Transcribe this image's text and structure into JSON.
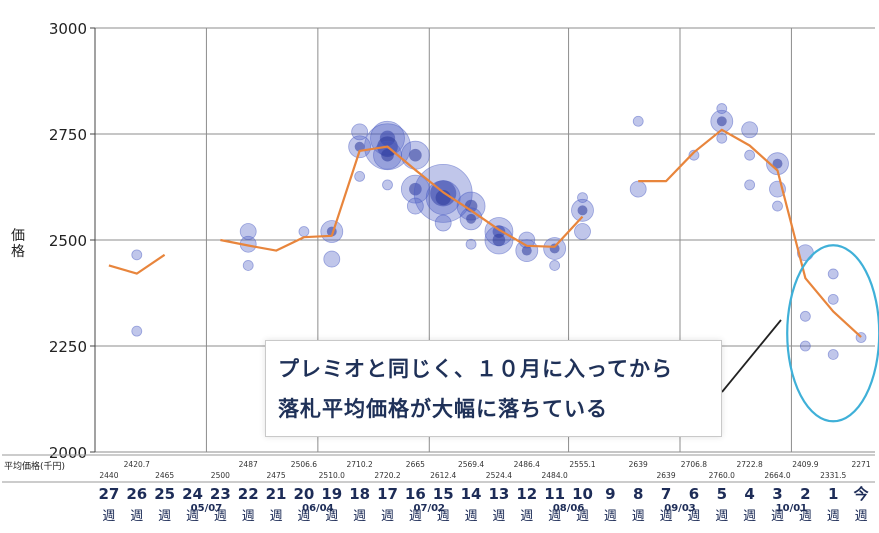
{
  "chart_data": {
    "type": "line",
    "ylabel": "価格",
    "ylim": [
      2000,
      3000
    ],
    "yticks": [
      2000,
      2250,
      2500,
      2750,
      3000
    ],
    "grid": true,
    "series_color": "#e8853c",
    "bubble_color": "#4a5bc4",
    "highlight_color": "#3fb0d8",
    "table_row_label": "平均価格(千円)",
    "categories": [
      {
        "label": "27",
        "unit": "週"
      },
      {
        "label": "26",
        "unit": "週"
      },
      {
        "label": "25",
        "unit": "週"
      },
      {
        "label": "24",
        "unit": "週"
      },
      {
        "label": "23",
        "unit": "週"
      },
      {
        "label": "22",
        "unit": "週"
      },
      {
        "label": "21",
        "unit": "週"
      },
      {
        "label": "20",
        "unit": "週"
      },
      {
        "label": "19",
        "unit": "週"
      },
      {
        "label": "18",
        "unit": "週"
      },
      {
        "label": "17",
        "unit": "週"
      },
      {
        "label": "16",
        "unit": "週"
      },
      {
        "label": "15",
        "unit": "週"
      },
      {
        "label": "14",
        "unit": "週"
      },
      {
        "label": "13",
        "unit": "週"
      },
      {
        "label": "12",
        "unit": "週"
      },
      {
        "label": "11",
        "unit": "週"
      },
      {
        "label": "10",
        "unit": "週"
      },
      {
        "label": "9",
        "unit": "週"
      },
      {
        "label": "8",
        "unit": "週"
      },
      {
        "label": "7",
        "unit": "週"
      },
      {
        "label": "6",
        "unit": "週"
      },
      {
        "label": "5",
        "unit": "週"
      },
      {
        "label": "4",
        "unit": "週"
      },
      {
        "label": "3",
        "unit": "週"
      },
      {
        "label": "2",
        "unit": "週"
      },
      {
        "label": "1",
        "unit": "週"
      },
      {
        "label": "今",
        "unit": "週"
      }
    ],
    "month_labels": [
      {
        "label": "05/07",
        "index": 3.5
      },
      {
        "label": "06/04",
        "index": 7.5
      },
      {
        "label": "07/02",
        "index": 11.5
      },
      {
        "label": "08/06",
        "index": 16.5
      },
      {
        "label": "09/03",
        "index": 20.5
      },
      {
        "label": "10/01",
        "index": 24.5
      }
    ],
    "series": [
      {
        "values": [
          2440,
          2420.7,
          2465,
          null,
          2500,
          2487,
          2475,
          2506.6,
          2510,
          2710.2,
          2720.2,
          2665,
          2612.4,
          2569.4,
          2524.4,
          2486.4,
          2484,
          2555.1,
          null,
          2639,
          2639,
          2706.8,
          2760,
          2722.8,
          2664,
          2409.9,
          2331.5,
          2271
        ]
      }
    ],
    "table_values": [
      {
        "index": 0,
        "value": "2440",
        "row": 2
      },
      {
        "index": 1,
        "value": "2420.7",
        "row": 1
      },
      {
        "index": 2,
        "value": "2465",
        "row": 2
      },
      {
        "index": 4,
        "value": "2500",
        "row": 2
      },
      {
        "index": 5,
        "value": "2487",
        "row": 1
      },
      {
        "index": 6,
        "value": "2475",
        "row": 2
      },
      {
        "index": 7,
        "value": "2506.6",
        "row": 1
      },
      {
        "index": 8,
        "value": "2510.0",
        "row": 2
      },
      {
        "index": 9,
        "value": "2710.2",
        "row": 1
      },
      {
        "index": 10,
        "value": "2720.2",
        "row": 2
      },
      {
        "index": 11,
        "value": "2665",
        "row": 1
      },
      {
        "index": 12,
        "value": "2612.4",
        "row": 2
      },
      {
        "index": 13,
        "value": "2569.4",
        "row": 1
      },
      {
        "index": 14,
        "value": "2524.4",
        "row": 2
      },
      {
        "index": 15,
        "value": "2486.4",
        "row": 1
      },
      {
        "index": 16,
        "value": "2484.0",
        "row": 2
      },
      {
        "index": 17,
        "value": "2555.1",
        "row": 1
      },
      {
        "index": 19,
        "value": "2639",
        "row": 1
      },
      {
        "index": 20,
        "value": "2639",
        "row": 2
      },
      {
        "index": 21,
        "value": "2706.8",
        "row": 1
      },
      {
        "index": 22,
        "value": "2760.0",
        "row": 2
      },
      {
        "index": 23,
        "value": "2722.8",
        "row": 1
      },
      {
        "index": 24,
        "value": "2664.0",
        "row": 2
      },
      {
        "index": 25,
        "value": "2409.9",
        "row": 1
      },
      {
        "index": 26,
        "value": "2331.5",
        "row": 2
      },
      {
        "index": 27,
        "value": "2271",
        "row": 1
      }
    ],
    "bubbles": [
      {
        "x": 1,
        "y": 2465,
        "s": 1
      },
      {
        "x": 1,
        "y": 2285,
        "s": 1
      },
      {
        "x": 5,
        "y": 2520,
        "s": 2
      },
      {
        "x": 5,
        "y": 2490,
        "s": 2
      },
      {
        "x": 5,
        "y": 2440,
        "s": 1
      },
      {
        "x": 7,
        "y": 2520,
        "s": 1
      },
      {
        "x": 8,
        "y": 2520,
        "s": 3
      },
      {
        "x": 8,
        "y": 2455,
        "s": 2
      },
      {
        "x": 9,
        "y": 2755,
        "s": 2
      },
      {
        "x": 9,
        "y": 2720,
        "s": 3
      },
      {
        "x": 9,
        "y": 2650,
        "s": 1
      },
      {
        "x": 10,
        "y": 2740,
        "s": 5
      },
      {
        "x": 10,
        "y": 2720,
        "s": 7
      },
      {
        "x": 10,
        "y": 2700,
        "s": 4
      },
      {
        "x": 10,
        "y": 2630,
        "s": 1
      },
      {
        "x": 11,
        "y": 2700,
        "s": 4
      },
      {
        "x": 11,
        "y": 2620,
        "s": 4
      },
      {
        "x": 11,
        "y": 2580,
        "s": 2
      },
      {
        "x": 12,
        "y": 2610,
        "s": 9
      },
      {
        "x": 12,
        "y": 2600,
        "s": 5
      },
      {
        "x": 12,
        "y": 2540,
        "s": 2
      },
      {
        "x": 13,
        "y": 2580,
        "s": 4
      },
      {
        "x": 13,
        "y": 2550,
        "s": 3
      },
      {
        "x": 13,
        "y": 2490,
        "s": 1
      },
      {
        "x": 14,
        "y": 2520,
        "s": 4
      },
      {
        "x": 14,
        "y": 2500,
        "s": 4
      },
      {
        "x": 15,
        "y": 2475,
        "s": 3
      },
      {
        "x": 15,
        "y": 2500,
        "s": 2
      },
      {
        "x": 16,
        "y": 2480,
        "s": 3
      },
      {
        "x": 16,
        "y": 2440,
        "s": 1
      },
      {
        "x": 17,
        "y": 2570,
        "s": 3
      },
      {
        "x": 17,
        "y": 2520,
        "s": 2
      },
      {
        "x": 17,
        "y": 2600,
        "s": 1
      },
      {
        "x": 19,
        "y": 2620,
        "s": 2
      },
      {
        "x": 19,
        "y": 2780,
        "s": 1
      },
      {
        "x": 21,
        "y": 2700,
        "s": 1
      },
      {
        "x": 22,
        "y": 2780,
        "s": 3
      },
      {
        "x": 22,
        "y": 2810,
        "s": 1
      },
      {
        "x": 22,
        "y": 2740,
        "s": 1
      },
      {
        "x": 23,
        "y": 2760,
        "s": 2
      },
      {
        "x": 23,
        "y": 2700,
        "s": 1
      },
      {
        "x": 23,
        "y": 2630,
        "s": 1
      },
      {
        "x": 24,
        "y": 2680,
        "s": 3
      },
      {
        "x": 24,
        "y": 2620,
        "s": 2
      },
      {
        "x": 24,
        "y": 2580,
        "s": 1
      },
      {
        "x": 25,
        "y": 2470,
        "s": 2
      },
      {
        "x": 25,
        "y": 2320,
        "s": 1
      },
      {
        "x": 25,
        "y": 2250,
        "s": 1
      },
      {
        "x": 26,
        "y": 2360,
        "s": 1
      },
      {
        "x": 26,
        "y": 2230,
        "s": 1
      },
      {
        "x": 26,
        "y": 2420,
        "s": 1
      },
      {
        "x": 27,
        "y": 2270,
        "s": 1
      }
    ],
    "annotation": {
      "line1": "プレミオと同じく、１０月に入ってから",
      "line2": "落札平均価格が大幅に落ちている"
    }
  }
}
